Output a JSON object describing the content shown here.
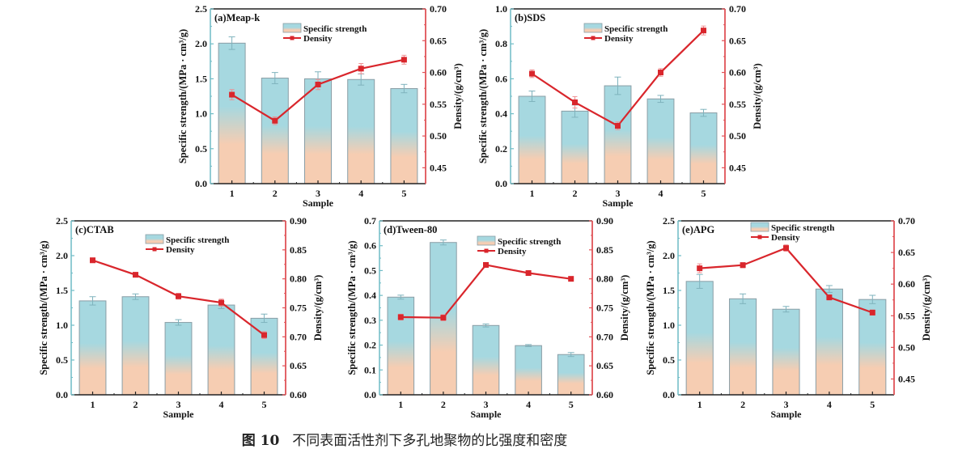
{
  "caption": {
    "figure_label": "图 10",
    "text": "不同表面活性剂下多孔地聚物的比强度和密度"
  },
  "colors": {
    "bar_top": "#a6d8e0",
    "bar_bottom": "#f6cdb2",
    "bar_border": "#8a9ea6",
    "line": "#d9262c",
    "left_axis": "#6fbcc6",
    "right_axis": "#e05257",
    "frame": "#222222"
  },
  "chart_data": [
    {
      "id": "a",
      "type": "bar+line",
      "title": "(a)Meap-k",
      "xlabel": "Sample",
      "ylabel": "Specific strength/(MPa · cm³/g)",
      "y2label": "Density/(g/cm³)",
      "categories": [
        "1",
        "2",
        "3",
        "4",
        "5"
      ],
      "ylim": [
        0,
        2.5
      ],
      "yticks": [
        "0.0",
        "0.5",
        "1.0",
        "1.5",
        "2.0",
        "2.5"
      ],
      "y2lim": [
        0.425,
        0.7
      ],
      "y2ticks": [
        "0.45",
        "0.50",
        "0.55",
        "0.60",
        "0.65",
        "0.70"
      ],
      "legend": [
        "Specific strength",
        "Density"
      ],
      "legend_position": "top-center",
      "series": [
        {
          "name": "Specific strength",
          "type": "bar",
          "axis": "left",
          "values": [
            2.01,
            1.51,
            1.5,
            1.49,
            1.36
          ],
          "errors": [
            0.09,
            0.08,
            0.1,
            0.08,
            0.06
          ]
        },
        {
          "name": "Density",
          "type": "line",
          "axis": "right",
          "values": [
            0.565,
            0.524,
            0.581,
            0.606,
            0.62
          ],
          "errors": [
            0.008,
            0.006,
            0.008,
            0.008,
            0.007
          ]
        }
      ]
    },
    {
      "id": "b",
      "type": "bar+line",
      "title": "(b)SDS",
      "xlabel": "Sample",
      "ylabel": "Specific strength/(MPa · cm³/g)",
      "y2label": "Density/(g/cm³)",
      "categories": [
        "1",
        "2",
        "3",
        "4",
        "5"
      ],
      "ylim": [
        0,
        1.0
      ],
      "yticks": [
        "0.0",
        "0.2",
        "0.4",
        "0.6",
        "0.8",
        "1.0"
      ],
      "y2lim": [
        0.425,
        0.7
      ],
      "y2ticks": [
        "0.45",
        "0.50",
        "0.55",
        "0.60",
        "0.65",
        "0.70"
      ],
      "legend": [
        "Specific strength",
        "Density"
      ],
      "legend_position": "top-center",
      "series": [
        {
          "name": "Specific strength",
          "type": "bar",
          "axis": "left",
          "values": [
            0.5,
            0.415,
            0.56,
            0.485,
            0.405
          ],
          "errors": [
            0.03,
            0.035,
            0.05,
            0.02,
            0.02
          ]
        },
        {
          "name": "Density",
          "type": "line",
          "axis": "right",
          "values": [
            0.598,
            0.553,
            0.516,
            0.6,
            0.666
          ],
          "errors": [
            0.006,
            0.009,
            0.006,
            0.006,
            0.007
          ]
        }
      ]
    },
    {
      "id": "c",
      "type": "bar+line",
      "title": "(c)CTAB",
      "xlabel": "Sample",
      "ylabel": "Specific strength/(MPa · cm³/g)",
      "y2label": "Density/(g/cm³)",
      "categories": [
        "1",
        "2",
        "3",
        "4",
        "5"
      ],
      "ylim": [
        0,
        2.5
      ],
      "yticks": [
        "0.0",
        "0.5",
        "1.0",
        "1.5",
        "2.0",
        "2.5"
      ],
      "y2lim": [
        0.6,
        0.9
      ],
      "y2ticks": [
        "0.60",
        "0.65",
        "0.70",
        "0.75",
        "0.80",
        "0.85",
        "0.90"
      ],
      "legend": [
        "Specific strength",
        "Density"
      ],
      "legend_position": "top-center",
      "series": [
        {
          "name": "Specific strength",
          "type": "bar",
          "axis": "left",
          "values": [
            1.35,
            1.41,
            1.04,
            1.29,
            1.1
          ],
          "errors": [
            0.06,
            0.04,
            0.04,
            0.05,
            0.06
          ]
        },
        {
          "name": "Density",
          "type": "line",
          "axis": "right",
          "values": [
            0.832,
            0.807,
            0.77,
            0.759,
            0.703
          ],
          "errors": [
            0.004,
            0.004,
            0.005,
            0.006,
            0.006
          ]
        }
      ]
    },
    {
      "id": "d",
      "type": "bar+line",
      "title": "(d)Tween-80",
      "xlabel": "Sample",
      "ylabel": "Specific strength/(MPa · cm³/g)",
      "y2label": "Density/(g/cm³)",
      "categories": [
        "1",
        "2",
        "3",
        "4",
        "5"
      ],
      "ylim": [
        0,
        0.7
      ],
      "yticks": [
        "0.0",
        "0.1",
        "0.2",
        "0.3",
        "0.4",
        "0.5",
        "0.6",
        "0.7"
      ],
      "y2lim": [
        0.6,
        0.9
      ],
      "y2ticks": [
        "0.60",
        "0.65",
        "0.70",
        "0.75",
        "0.80",
        "0.85",
        "0.90"
      ],
      "legend": [
        "Specific strength",
        "Density"
      ],
      "legend_position": "top-right",
      "series": [
        {
          "name": "Specific strength",
          "type": "bar",
          "axis": "left",
          "values": [
            0.393,
            0.613,
            0.279,
            0.198,
            0.162
          ],
          "errors": [
            0.008,
            0.01,
            0.006,
            0.004,
            0.008
          ]
        },
        {
          "name": "Density",
          "type": "line",
          "axis": "right",
          "values": [
            0.734,
            0.733,
            0.824,
            0.81,
            0.8
          ],
          "errors": [
            0.005,
            0.005,
            0.004,
            0.003,
            0.003
          ]
        }
      ]
    },
    {
      "id": "e",
      "type": "bar+line",
      "title": "(e)APG",
      "xlabel": "Sample",
      "ylabel": "Specific strength/(MPa · cm³/g)",
      "y2label": "Density/(g/cm³)",
      "categories": [
        "1",
        "2",
        "3",
        "4",
        "5"
      ],
      "ylim": [
        0,
        2.5
      ],
      "yticks": [
        "0.0",
        "0.5",
        "1.0",
        "1.5",
        "2.0",
        "2.5"
      ],
      "y2lim": [
        0.425,
        0.7
      ],
      "y2ticks": [
        "0.45",
        "0.50",
        "0.55",
        "0.60",
        "0.65",
        "0.70"
      ],
      "legend": [
        "Specific strength",
        "Density"
      ],
      "legend_position": "top-center",
      "series": [
        {
          "name": "Specific strength",
          "type": "bar",
          "axis": "left",
          "values": [
            1.63,
            1.38,
            1.23,
            1.52,
            1.37
          ],
          "errors": [
            0.1,
            0.07,
            0.04,
            0.05,
            0.06
          ]
        },
        {
          "name": "Density",
          "type": "line",
          "axis": "right",
          "values": [
            0.625,
            0.63,
            0.657,
            0.579,
            0.555
          ],
          "errors": [
            0.007,
            0.004,
            0.005,
            0.004,
            0.004
          ]
        }
      ]
    }
  ]
}
